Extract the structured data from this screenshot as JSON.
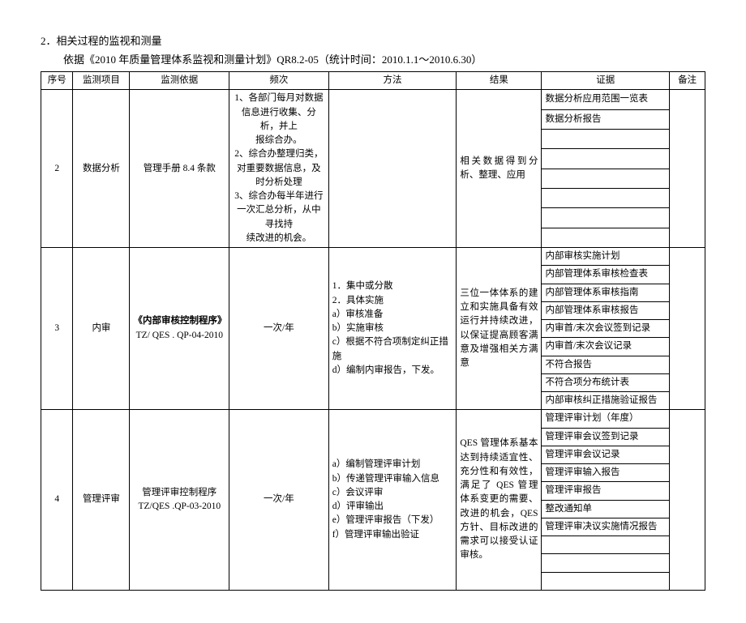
{
  "heading": "2．相关过程的监视和测量",
  "subheading": "依据《2010 年质量管理体系监视和测量计划》QR8.2-05（统计时间：2010.1.1～2010.6.30）",
  "columns": [
    "序号",
    "监测项目",
    "监测依据",
    "频次",
    "方法",
    "结果",
    "证据",
    "备注"
  ],
  "rows": [
    {
      "seq": "2",
      "item": "数据分析",
      "basis": "管理手册 8.4 条款",
      "freq_lines": [
        "1、各部门每月对数据信息进行收集、分析，并上",
        "报综合办。",
        "2、综合办整理归类，对重要数据信息，及时分析处理",
        "3、综合办每半年进行一次汇总分析，从中寻找持",
        "续改进的机会。"
      ],
      "method": "",
      "result": "相关数据得到分析、整理、应用",
      "evidence": [
        "数据分析应用范围一览表",
        "数据分析报告",
        "",
        "",
        "",
        "",
        "",
        ""
      ]
    },
    {
      "seq": "3",
      "item": "内审",
      "basis_bold": "《内部审核控制程序》",
      "basis_plain": "TZ/ QES . QP-04-2010",
      "freq": "一次/年",
      "method_lines": [
        "1．集中或分散",
        "2．具体实施",
        "a）审核准备",
        "b）实施审核",
        "c）根据不符合项制定纠正措施",
        "d）编制内审报告，下发。"
      ],
      "result": "三位一体体系的建立和实施具备有效运行并持续改进，以保证提高顾客满意及增强相关方满意",
      "evidence": [
        "内部审核实施计划",
        "内部管理体系审核检查表",
        "内部管理体系审核指南",
        "内部管理体系审核报告",
        "内审首/末次会议签到记录",
        "内审首/末次会议记录",
        "不符合报告",
        "不符合项分布统计表",
        "内部审核纠正措施验证报告"
      ]
    },
    {
      "seq": "4",
      "item": "管理评审",
      "basis_lines": [
        "管理评审控制程序",
        "TZ/QES .QP-03-2010"
      ],
      "freq": "一次/年",
      "method_lines": [
        "a）编制管理评审计划",
        "b）传递管理评审输入信息",
        "c）会议评审",
        "d）评审输出",
        "e）管理评审报告（下发）",
        "f）管理评审输出验证"
      ],
      "result": "QES 管理体系基本达到持续适宜性、充分性和有效性，满足了 QES 管理体系变更的需要、改进的机会，QES 方针、目标改进的需求可以接受认证审核。",
      "evidence": [
        "管理评审计划（年度）",
        "管理评审会议签到记录",
        "管理评审会议记录",
        "管理评审输入报告",
        "管理评审报告",
        "整改通知单",
        "管理评审决议实施情况报告",
        "",
        "",
        ""
      ]
    }
  ]
}
